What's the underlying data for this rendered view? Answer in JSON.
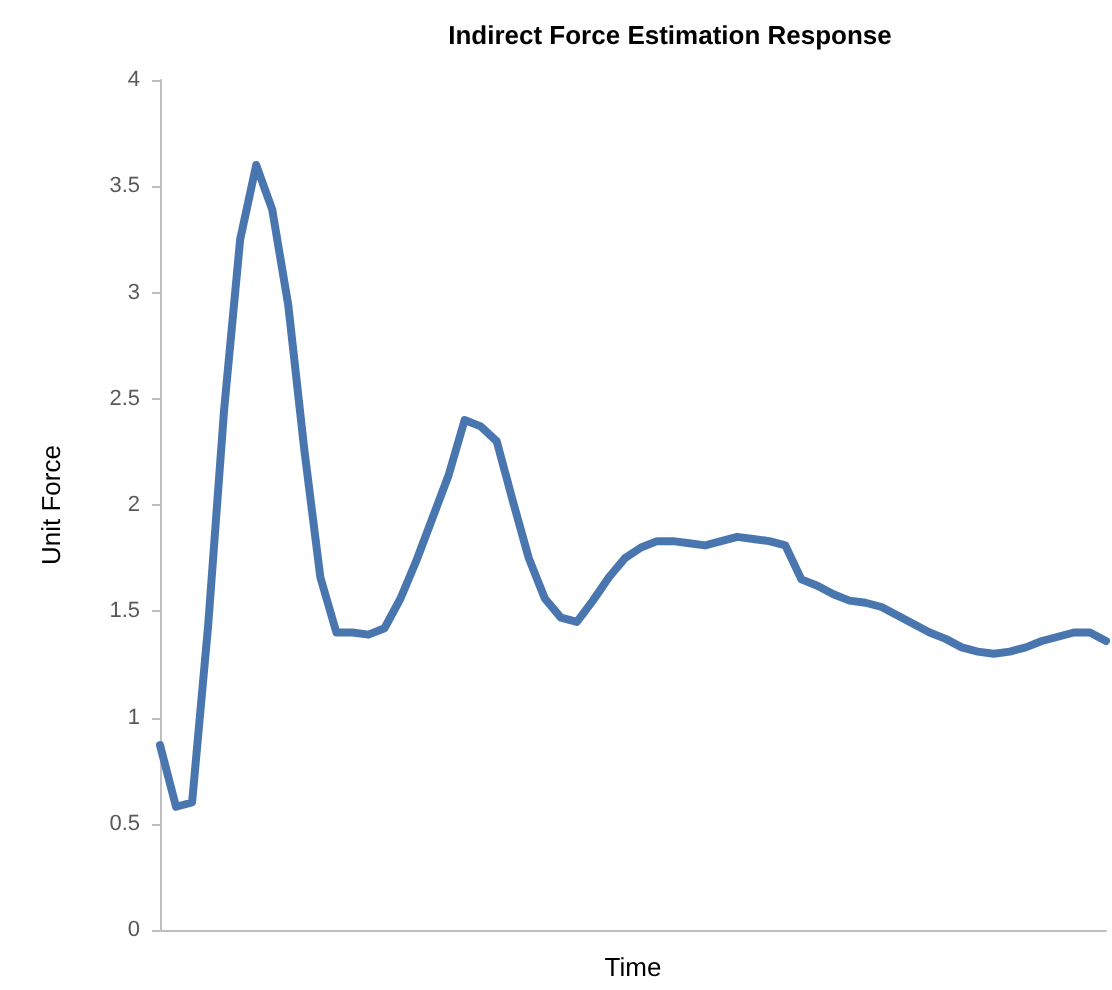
{
  "chart_data": {
    "type": "line",
    "title": "Indirect Force Estimation Response",
    "xlabel": "Time",
    "ylabel": "Unit Force",
    "categories": [
      null,
      null,
      null,
      null,
      null,
      null,
      null,
      null,
      null,
      null,
      null,
      null,
      null,
      null,
      null,
      null,
      null,
      null,
      null,
      null,
      null,
      null,
      null,
      null,
      null,
      null,
      null,
      null,
      null,
      null,
      null,
      null,
      null,
      null,
      null,
      null,
      null,
      null,
      null,
      null,
      null,
      null,
      null,
      null,
      null,
      null,
      null,
      null,
      null,
      null,
      null,
      null,
      null,
      null,
      null,
      null,
      null,
      null,
      null,
      null
    ],
    "series": [
      {
        "color": "#4a76b0",
        "values": [
          0.87,
          0.58,
          0.6,
          1.43,
          2.45,
          3.25,
          3.6,
          3.39,
          2.94,
          2.26,
          1.66,
          1.4,
          1.4,
          1.39,
          1.42,
          1.56,
          1.74,
          1.94,
          2.14,
          2.4,
          2.37,
          2.3,
          2.02,
          1.75,
          1.56,
          1.47,
          1.45,
          1.55,
          1.66,
          1.75,
          1.8,
          1.83,
          1.83,
          1.82,
          1.81,
          1.83,
          1.85,
          1.84,
          1.83,
          1.81,
          1.65,
          1.62,
          1.58,
          1.55,
          1.54,
          1.52,
          1.48,
          1.44,
          1.4,
          1.37,
          1.33,
          1.31,
          1.3,
          1.31,
          1.33,
          1.36,
          1.38,
          1.4,
          1.4,
          1.36
        ]
      }
    ],
    "ylim": [
      0,
      4
    ],
    "yticks": [
      0,
      0.5,
      1,
      1.5,
      2,
      2.5,
      3,
      3.5,
      4
    ],
    "tick_labels": "y",
    "grid": false,
    "line_style": "solid"
  }
}
